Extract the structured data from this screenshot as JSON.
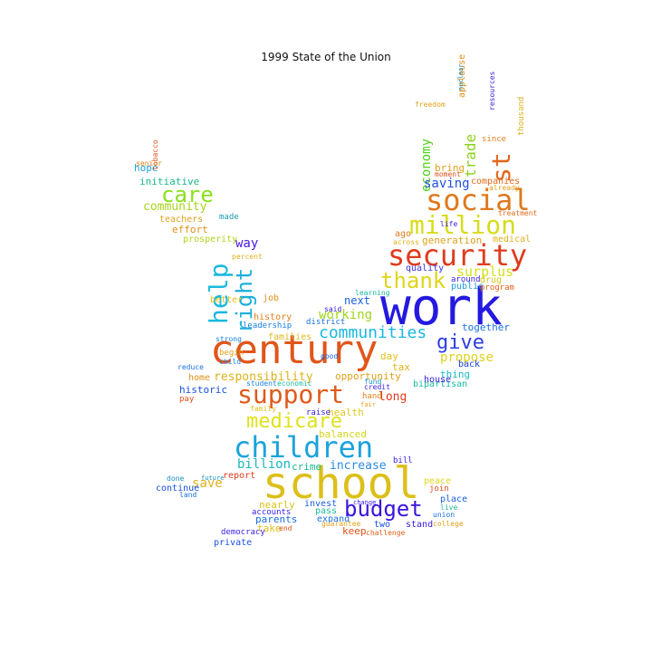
{
  "title": "1999 State of the Union",
  "words": [
    {
      "text": "century",
      "color": "#e0561a"
    },
    {
      "text": "work",
      "color": "#2419e0"
    },
    {
      "text": "school",
      "color": "#dcbf1a"
    },
    {
      "text": "security",
      "color": "#e03a1c"
    },
    {
      "text": "social",
      "color": "#e0781c"
    },
    {
      "text": "million",
      "color": "#d7dc1a"
    },
    {
      "text": "children",
      "color": "#1aa3dc"
    },
    {
      "text": "support",
      "color": "#e05a1a"
    },
    {
      "text": "budget",
      "color": "#3a14dc"
    },
    {
      "text": "medicare",
      "color": "#dfe21a"
    },
    {
      "text": "help",
      "color": "#1ab8e0"
    },
    {
      "text": "thank",
      "color": "#dfd51a"
    },
    {
      "text": "care",
      "color": "#8ae01a"
    },
    {
      "text": "st",
      "color": "#e0661a"
    },
    {
      "text": "right",
      "color": "#1ab0dc"
    },
    {
      "text": "give",
      "color": "#2b3ee0"
    },
    {
      "text": "communities",
      "color": "#1ab8e0"
    },
    {
      "text": "responsibility",
      "color": "#dcb21a"
    },
    {
      "text": "billion",
      "color": "#1ab8b8"
    },
    {
      "text": "economy",
      "color": "#4fd21a"
    },
    {
      "text": "trade",
      "color": "#8ad21a"
    },
    {
      "text": "surplus",
      "color": "#d4e01a"
    },
    {
      "text": "saving",
      "color": "#2050dc"
    },
    {
      "text": "community",
      "color": "#a8d41a"
    },
    {
      "text": "propose",
      "color": "#dfd21a"
    },
    {
      "text": "increase",
      "color": "#2a8ae0"
    },
    {
      "text": "working",
      "color": "#a0d61a"
    },
    {
      "text": "save",
      "color": "#dcb21a"
    },
    {
      "text": "long",
      "color": "#e03a1a"
    },
    {
      "text": "crime",
      "color": "#1ab890"
    },
    {
      "text": "parents",
      "color": "#1a6ee0"
    },
    {
      "text": "nearly",
      "color": "#dcc21a"
    },
    {
      "text": "keep",
      "color": "#e0501a"
    },
    {
      "text": "way",
      "color": "#4a1ae0"
    },
    {
      "text": "historic",
      "color": "#1a50e0"
    },
    {
      "text": "opportunity",
      "color": "#e0a01a"
    },
    {
      "text": "bring",
      "color": "#e0a01a"
    },
    {
      "text": "companies",
      "color": "#e06a1a"
    },
    {
      "text": "generation",
      "color": "#e0a01a"
    },
    {
      "text": "initiative",
      "color": "#1ab890"
    },
    {
      "text": "hope",
      "color": "#1aa0e0"
    },
    {
      "text": "effort",
      "color": "#e0901a"
    },
    {
      "text": "teachers",
      "color": "#e0a01a"
    },
    {
      "text": "prosperity",
      "color": "#b0d41a"
    },
    {
      "text": "next",
      "color": "#1a60e0"
    },
    {
      "text": "families",
      "color": "#e0b81a"
    },
    {
      "text": "job",
      "color": "#e0901a"
    },
    {
      "text": "history",
      "color": "#e0801a"
    },
    {
      "text": "health",
      "color": "#e0c81a"
    },
    {
      "text": "balanced",
      "color": "#d6d41a"
    },
    {
      "text": "day",
      "color": "#e0c01a"
    },
    {
      "text": "tax",
      "color": "#e0b01a"
    },
    {
      "text": "thing",
      "color": "#1ab8c8"
    },
    {
      "text": "together",
      "color": "#1a70e0"
    },
    {
      "text": "back",
      "color": "#1a3ae0"
    },
    {
      "text": "public",
      "color": "#1a9ae0"
    },
    {
      "text": "drug",
      "color": "#d4c81a"
    },
    {
      "text": "quality",
      "color": "#3a30e0"
    },
    {
      "text": "medical",
      "color": "#e0b01a"
    },
    {
      "text": "ago",
      "color": "#e07a1a"
    },
    {
      "text": "invest",
      "color": "#1a5ee0"
    },
    {
      "text": "pass",
      "color": "#1ab8a0"
    },
    {
      "text": "expand",
      "color": "#1a70e0"
    },
    {
      "text": "take",
      "color": "#e0c01a"
    },
    {
      "text": "accounts",
      "color": "#3a20e0"
    },
    {
      "text": "private",
      "color": "#1a50e0"
    },
    {
      "text": "democracy",
      "color": "#3a20e0"
    },
    {
      "text": "continue",
      "color": "#1a50e0"
    },
    {
      "text": "done",
      "color": "#1a90c0"
    },
    {
      "text": "place",
      "color": "#1a60e0"
    },
    {
      "text": "live",
      "color": "#1ab890"
    },
    {
      "text": "peace",
      "color": "#e0d81a"
    },
    {
      "text": "join",
      "color": "#e0501a"
    },
    {
      "text": "stand",
      "color": "#3a20e0"
    },
    {
      "text": "two",
      "color": "#1a50e0"
    },
    {
      "text": "report",
      "color": "#e03a1a"
    },
    {
      "text": "leadership",
      "color": "#1a80e0"
    },
    {
      "text": "better",
      "color": "#e0c01a"
    },
    {
      "text": "home",
      "color": "#e0901a"
    },
    {
      "text": "bipartisan",
      "color": "#1ab8a0"
    },
    {
      "text": "house",
      "color": "#3a20e0"
    },
    {
      "text": "made",
      "color": "#1a9ab0"
    },
    {
      "text": "around",
      "color": "#3a20e0"
    },
    {
      "text": "applause",
      "color": "#e0901a"
    },
    {
      "text": "thousand",
      "color": "#e0b01a"
    },
    {
      "text": "program",
      "color": "#e0601a"
    },
    {
      "text": "since",
      "color": "#e0801a"
    },
    {
      "text": "begin",
      "color": "#e0a01a"
    },
    {
      "text": "child",
      "color": "#1a80e0"
    },
    {
      "text": "bill",
      "color": "#3a20e0"
    },
    {
      "text": "hand",
      "color": "#e0801a"
    },
    {
      "text": "family",
      "color": "#e0c01a"
    },
    {
      "text": "student",
      "color": "#1a80e0"
    },
    {
      "text": "economic",
      "color": "#1ab8a0"
    },
    {
      "text": "district",
      "color": "#1a70e0"
    },
    {
      "text": "strong",
      "color": "#1a80e0"
    },
    {
      "text": "raise",
      "color": "#3a20e0"
    },
    {
      "text": "fund",
      "color": "#1a90c0"
    },
    {
      "text": "credit",
      "color": "#3a20e0"
    },
    {
      "text": "said",
      "color": "#3a20e0"
    },
    {
      "text": "good",
      "color": "#1a60e0"
    },
    {
      "text": "tobacco",
      "color": "#e0501a"
    },
    {
      "text": "senior",
      "color": "#e0801a"
    },
    {
      "text": "learning",
      "color": "#1ab8a0"
    },
    {
      "text": "already",
      "color": "#e0a01a"
    },
    {
      "text": "treatment",
      "color": "#e06a1a"
    },
    {
      "text": "moment",
      "color": "#e0501a"
    },
    {
      "text": "across",
      "color": "#e0b01a"
    },
    {
      "text": "challenge",
      "color": "#e0601a"
    },
    {
      "text": "guarantee",
      "color": "#e0a01a"
    },
    {
      "text": "percent",
      "color": "#e0b01a"
    },
    {
      "text": "pay",
      "color": "#e0501a"
    },
    {
      "text": "reduce",
      "color": "#1a70e0"
    },
    {
      "text": "resources",
      "color": "#3a20e0"
    },
    {
      "text": "college",
      "color": "#e0a01a"
    },
    {
      "text": "union",
      "color": "#1a70e0"
    },
    {
      "text": "end",
      "color": "#e0501a"
    },
    {
      "text": "land",
      "color": "#1a70e0"
    },
    {
      "text": "future",
      "color": "#1a90c0"
    },
    {
      "text": "nuclear",
      "color": "#1a90c0"
    },
    {
      "text": "freedom",
      "color": "#e0a01a"
    },
    {
      "text": "life",
      "color": "#3a20e0"
    },
    {
      "text": "change",
      "color": "#3a20e0"
    },
    {
      "text": "fair",
      "color": "#e0a01a"
    }
  ]
}
